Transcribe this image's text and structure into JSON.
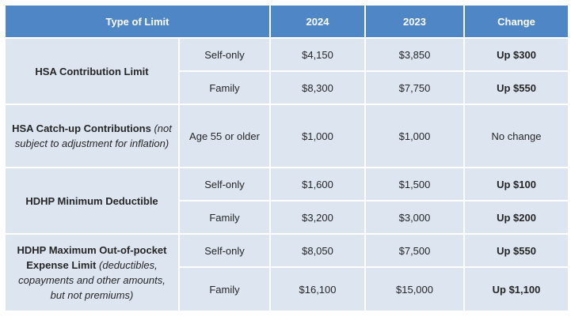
{
  "headers": {
    "type": "Type of Limit",
    "y2024": "2024",
    "y2023": "2023",
    "change": "Change"
  },
  "hsa_contribution": {
    "label": "HSA Contribution Limit",
    "self_only": {
      "coverage": "Self-only",
      "y2024": "$4,150",
      "y2023": "$3,850",
      "change": "Up $300"
    },
    "family": {
      "coverage": "Family",
      "y2024": "$8,300",
      "y2023": "$7,750",
      "change": "Up $550"
    }
  },
  "hsa_catchup": {
    "label": "HSA Catch-up Contributions",
    "note": "(not subject to adjustment for inflation)",
    "coverage": "Age 55 or older",
    "y2024": "$1,000",
    "y2023": "$1,000",
    "change": "No change"
  },
  "hdhp_deductible": {
    "label": "HDHP Minimum Deductible",
    "self_only": {
      "coverage": "Self-only",
      "y2024": "$1,600",
      "y2023": "$1,500",
      "change": "Up $100"
    },
    "family": {
      "coverage": "Family",
      "y2024": "$3,200",
      "y2023": "$3,000",
      "change": "Up $200"
    }
  },
  "hdhp_oop": {
    "label": "HDHP Maximum Out-of-pocket Expense Limit",
    "note": "(deductibles, copayments and other amounts, but not premiums)",
    "self_only": {
      "coverage": "Self-only",
      "y2024": "$8,050",
      "y2023": "$7,500",
      "change": "Up $550"
    },
    "family": {
      "coverage": "Family",
      "y2024": "$16,100",
      "y2023": "$15,000",
      "change": "Up $1,100"
    }
  },
  "colors": {
    "header_bg": "#4f86c6",
    "cell_bg": "#dde5f1",
    "text": "#262626"
  }
}
